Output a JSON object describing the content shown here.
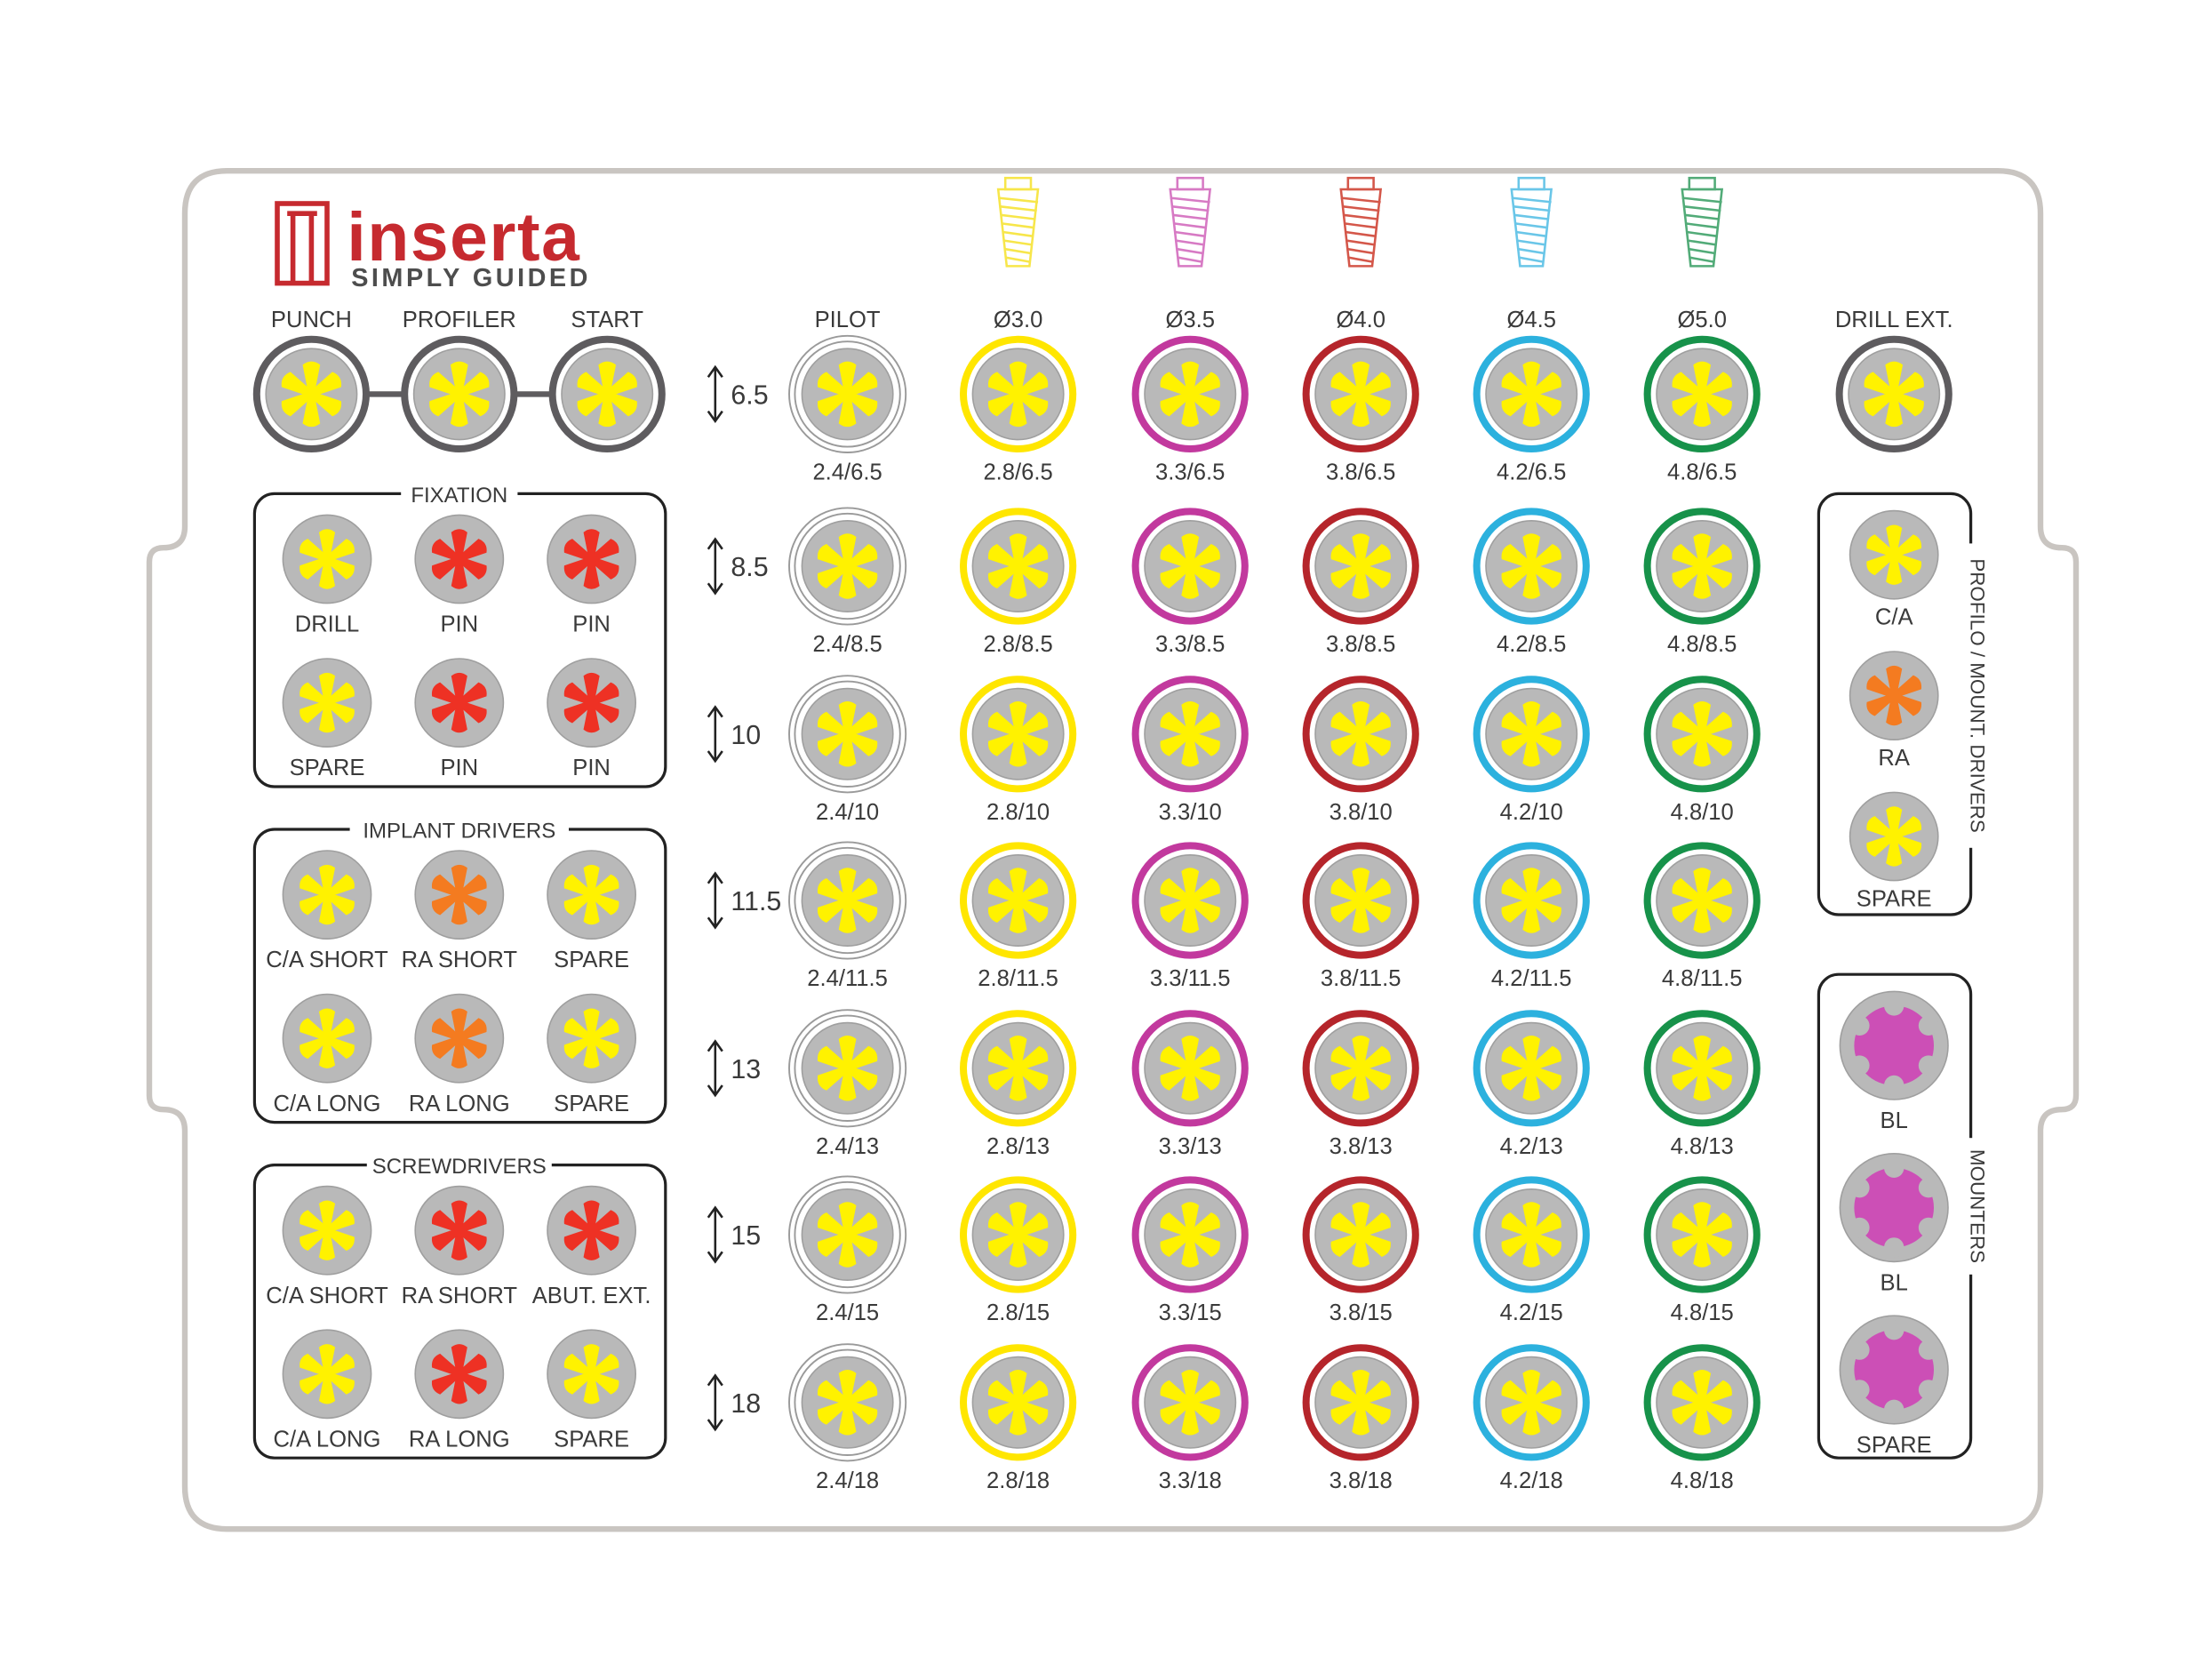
{
  "brand": {
    "name": "inserta",
    "tagline": "SIMPLY GUIDED",
    "color": "#c62a2f",
    "tagline_color": "#4d4d4d"
  },
  "colors": {
    "frame": "#c9c5c1",
    "disc": "#b9b9b9",
    "disc_edge": "#9f9f9f",
    "yellow": "#fff200",
    "red": "#ee3124",
    "orange": "#f47b20",
    "magenta": "#cc4fb6",
    "dark_ring": "#5e5c5f",
    "text": "#3a3a3a"
  },
  "top_tools": {
    "labels": [
      "PUNCH",
      "PROFILER",
      "START"
    ],
    "ring_color": "#5e5c5f"
  },
  "fixation": {
    "title": "FIXATION",
    "items": [
      {
        "label": "DRILL",
        "star": "yellow"
      },
      {
        "label": "PIN",
        "star": "red"
      },
      {
        "label": "PIN",
        "star": "red"
      },
      {
        "label": "SPARE",
        "star": "yellow"
      },
      {
        "label": "PIN",
        "star": "red"
      },
      {
        "label": "PIN",
        "star": "red"
      }
    ]
  },
  "implant_drivers": {
    "title": "IMPLANT DRIVERS",
    "items": [
      {
        "label": "C/A SHORT",
        "star": "yellow"
      },
      {
        "label": "RA SHORT",
        "star": "orange"
      },
      {
        "label": "SPARE",
        "star": "yellow"
      },
      {
        "label": "C/A LONG",
        "star": "yellow"
      },
      {
        "label": "RA LONG",
        "star": "orange"
      },
      {
        "label": "SPARE",
        "star": "yellow"
      }
    ]
  },
  "screwdrivers": {
    "title": "SCREWDRIVERS",
    "items": [
      {
        "label": "C/A SHORT",
        "star": "yellow"
      },
      {
        "label": "RA SHORT",
        "star": "red"
      },
      {
        "label": "ABUT. EXT.",
        "star": "red"
      },
      {
        "label": "C/A LONG",
        "star": "yellow"
      },
      {
        "label": "RA LONG",
        "star": "red"
      },
      {
        "label": "SPARE",
        "star": "yellow"
      }
    ]
  },
  "grid": {
    "lengths": [
      "6.5",
      "8.5",
      "10",
      "11.5",
      "13",
      "15",
      "18"
    ],
    "columns": [
      {
        "header": "PILOT",
        "diameter": "2.4",
        "ring": "pilot",
        "implant_color": ""
      },
      {
        "header": "Ø3.0",
        "diameter": "2.8",
        "ring": "#ffe600",
        "implant_color": "#f7e64a"
      },
      {
        "header": "Ø3.5",
        "diameter": "3.3",
        "ring": "#c2399e",
        "implant_color": "#d77ac4"
      },
      {
        "header": "Ø4.0",
        "diameter": "3.8",
        "ring": "#b5252b",
        "implant_color": "#d4574a"
      },
      {
        "header": "Ø4.5",
        "diameter": "4.2",
        "ring": "#2cb1de",
        "implant_color": "#6ac6e8"
      },
      {
        "header": "Ø5.0",
        "diameter": "4.8",
        "ring": "#17924a",
        "implant_color": "#52ab78"
      }
    ]
  },
  "drill_ext": {
    "label": "DRILL EXT.",
    "ring_color": "#5e5c5f"
  },
  "profilo_mount_drivers": {
    "title": "PROFILO / MOUNT. DRIVERS",
    "items": [
      {
        "label": "C/A",
        "star": "yellow"
      },
      {
        "label": "RA",
        "star": "orange"
      },
      {
        "label": "SPARE",
        "star": "yellow"
      }
    ]
  },
  "mounters": {
    "title": "MOUNTERS",
    "items": [
      {
        "label": "BL"
      },
      {
        "label": "BL"
      },
      {
        "label": "SPARE"
      }
    ]
  }
}
